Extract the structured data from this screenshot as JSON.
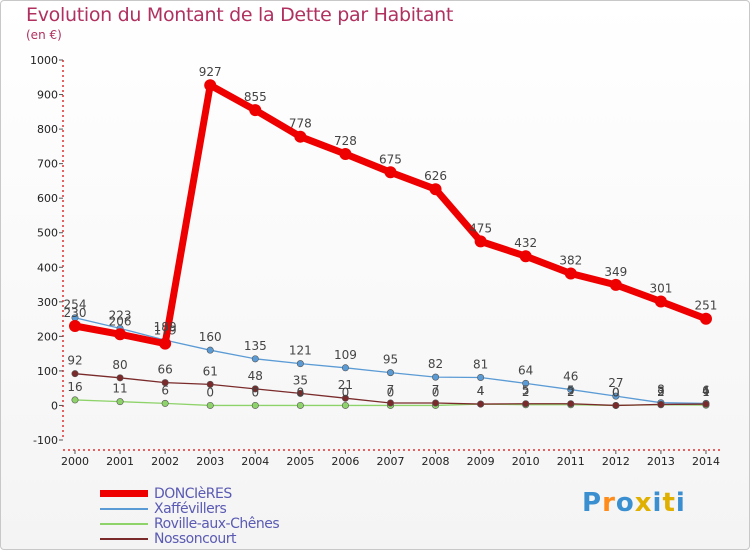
{
  "title": "Evolution du Montant de la Dette par Habitant",
  "subtitle": "(en €)",
  "brand": {
    "text": "Proxiti",
    "colors": [
      "#3a8fd0",
      "#ff8c1a",
      "#3a8fd0",
      "#e0b000",
      "#3a8fd0",
      "#e0b000",
      "#3a8fd0"
    ]
  },
  "chart_data": {
    "type": "line",
    "x": [
      2000,
      2001,
      2002,
      2003,
      2004,
      2005,
      2006,
      2007,
      2008,
      2009,
      2010,
      2011,
      2012,
      2013,
      2014
    ],
    "ylim": [
      -100,
      1000
    ],
    "yticks": [
      -100,
      0,
      100,
      200,
      300,
      400,
      500,
      600,
      700,
      800,
      900,
      1000
    ],
    "grid": false,
    "legend_position": "bottom-left",
    "series": [
      {
        "name": "DONCIèRES",
        "color": "#ee0000",
        "values": [
          230,
          206,
          179,
          927,
          855,
          778,
          728,
          675,
          626,
          475,
          432,
          382,
          349,
          301,
          251
        ]
      },
      {
        "name": "Xaffévillers",
        "color": "#5b9bd5",
        "values": [
          254,
          223,
          189,
          160,
          135,
          121,
          109,
          95,
          82,
          81,
          64,
          46,
          27,
          8,
          6
        ]
      },
      {
        "name": "Roville-aux-Chênes",
        "color": "#8ed36a",
        "values": [
          16,
          11,
          6,
          0,
          0,
          0,
          0,
          0,
          0,
          4,
          2,
          2,
          0,
          2,
          1
        ]
      },
      {
        "name": "Nossoncourt",
        "color": "#7a2a2a",
        "values": [
          92,
          80,
          66,
          61,
          48,
          35,
          21,
          7,
          7,
          4,
          5,
          5,
          0,
          3,
          4
        ]
      }
    ]
  }
}
